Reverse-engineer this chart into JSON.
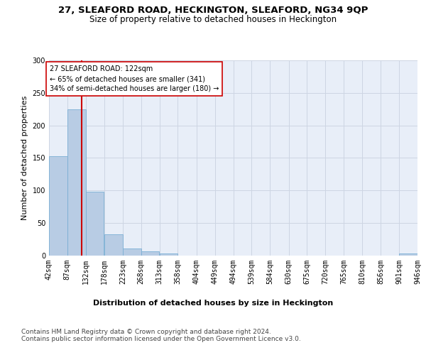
{
  "title": "27, SLEAFORD ROAD, HECKINGTON, SLEAFORD, NG34 9QP",
  "subtitle": "Size of property relative to detached houses in Heckington",
  "xlabel": "Distribution of detached houses by size in Heckington",
  "ylabel": "Number of detached properties",
  "bar_values": [
    153,
    225,
    98,
    33,
    11,
    7,
    3,
    0,
    0,
    0,
    0,
    0,
    0,
    0,
    0,
    0,
    0,
    0,
    0,
    3
  ],
  "bin_edges": [
    42,
    87,
    132,
    178,
    223,
    268,
    313,
    358,
    404,
    449,
    494,
    539,
    584,
    630,
    675,
    720,
    765,
    810,
    856,
    901,
    946
  ],
  "bin_labels": [
    "42sqm",
    "87sqm",
    "132sqm",
    "178sqm",
    "223sqm",
    "268sqm",
    "313sqm",
    "358sqm",
    "404sqm",
    "449sqm",
    "494sqm",
    "539sqm",
    "584sqm",
    "630sqm",
    "675sqm",
    "720sqm",
    "765sqm",
    "810sqm",
    "856sqm",
    "901sqm",
    "946sqm"
  ],
  "bar_color": "#b8cce4",
  "bar_edge_color": "#7bafd4",
  "property_line_x": 122,
  "annotation_line1": "27 SLEAFORD ROAD: 122sqm",
  "annotation_line2": "← 65% of detached houses are smaller (341)",
  "annotation_line3": "34% of semi-detached houses are larger (180) →",
  "red_line_color": "#cc0000",
  "annotation_box_facecolor": "#ffffff",
  "annotation_box_edgecolor": "#cc0000",
  "grid_color": "#cdd5e3",
  "background_color": "#e8eef8",
  "footer_line1": "Contains HM Land Registry data © Crown copyright and database right 2024.",
  "footer_line2": "Contains public sector information licensed under the Open Government Licence v3.0.",
  "ylim": [
    0,
    300
  ],
  "yticks": [
    0,
    50,
    100,
    150,
    200,
    250,
    300
  ],
  "title_fontsize": 9.5,
  "subtitle_fontsize": 8.5,
  "ylabel_fontsize": 8,
  "xlabel_fontsize": 8,
  "tick_fontsize": 7,
  "annotation_fontsize": 7,
  "footer_fontsize": 6.5
}
